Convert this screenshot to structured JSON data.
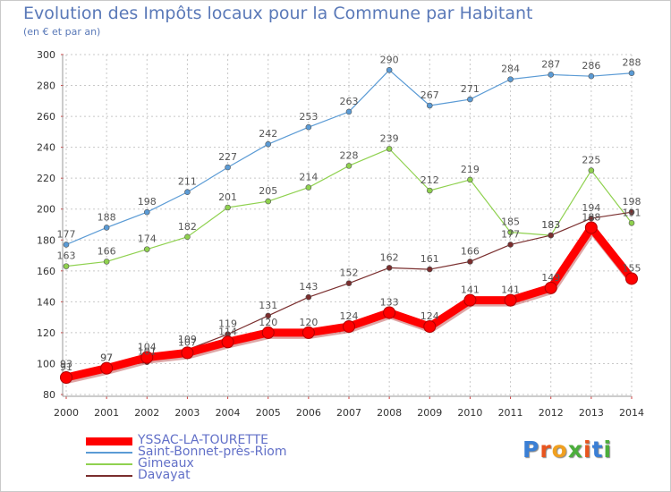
{
  "title": "Evolution des Impôts locaux pour la Commune par Habitant",
  "subtitle": "(en € et par an)",
  "brand": "Proxiti",
  "chart_data": {
    "type": "line",
    "title": "Evolution des Impôts locaux pour la Commune par Habitant",
    "subtitle": "(en € et par an)",
    "xlabel": "",
    "ylabel": "",
    "ylim": [
      80,
      300
    ],
    "yticks": [
      80,
      100,
      120,
      140,
      160,
      180,
      200,
      220,
      240,
      260,
      280,
      300
    ],
    "grid": true,
    "legend": "bottom-left",
    "x": [
      2000,
      2001,
      2002,
      2003,
      2004,
      2005,
      2006,
      2007,
      2008,
      2009,
      2010,
      2011,
      2012,
      2013,
      2014
    ],
    "series": [
      {
        "name": "Saint-Bonnet-près-Riom",
        "color": "#5b9bd5",
        "values": [
          177,
          188,
          198,
          211,
          227,
          242,
          253,
          263,
          290,
          267,
          271,
          284,
          287,
          286,
          288
        ]
      },
      {
        "name": "Gimeaux",
        "color": "#8fd14f",
        "values": [
          163,
          166,
          174,
          182,
          201,
          205,
          214,
          228,
          239,
          212,
          219,
          185,
          183,
          225,
          191
        ]
      },
      {
        "name": "Davayat",
        "color": "#7a2e2e",
        "values": [
          93,
          97,
          101,
          109,
          119,
          131,
          143,
          152,
          162,
          161,
          166,
          177,
          183,
          194,
          198
        ]
      },
      {
        "name": "YSSAC-LA-TOURETTE",
        "color": "#ff0000",
        "values": [
          91,
          97,
          104,
          107,
          114,
          120,
          120,
          124,
          133,
          124,
          141,
          141,
          149,
          188,
          155
        ]
      }
    ]
  }
}
